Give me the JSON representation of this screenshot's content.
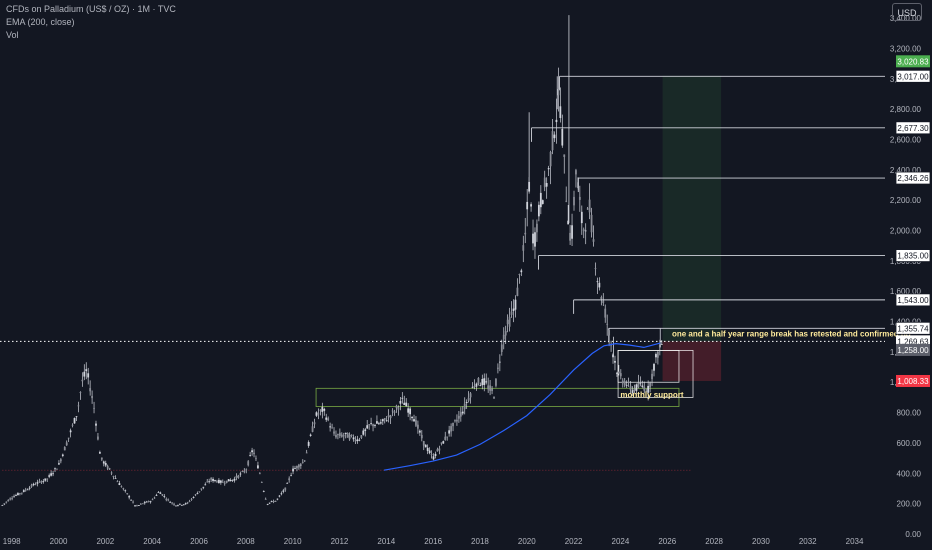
{
  "header": {
    "title": "CFDs on Palladium (US$ / OZ) · 1M · TVC",
    "indicator": "EMA (200, close)",
    "volume": "Vol"
  },
  "currency": "USD",
  "chart_data": {
    "type": "candlestick",
    "title": "CFDs on Palladium (US$ / OZ) · 1M · TVC",
    "xlim": [
      1997.5,
      2035.3
    ],
    "ylim": [
      -40,
      3520
    ],
    "x_ticks": [
      1998,
      2000,
      2002,
      2004,
      2006,
      2008,
      2010,
      2012,
      2014,
      2016,
      2018,
      2020,
      2022,
      2024,
      2026,
      2028,
      2030,
      2032,
      2034
    ],
    "y_ticks": [
      0,
      200,
      400,
      600,
      800,
      1000,
      1200,
      1400,
      1600,
      1800,
      2000,
      2200,
      2400,
      2600,
      2800,
      3000,
      3200,
      3400
    ],
    "y_tick_labels": [
      "0.00",
      "200.00",
      "400.00",
      "600.00",
      "800.00",
      "1,000.00",
      "1,200.00",
      "1,400.00",
      "1,600.00",
      "1,800.00",
      "2,000.00",
      "2,200.00",
      "2,400.00",
      "2,600.00",
      "2,800.00",
      "3,000.00",
      "3,200.00",
      "3,400.00"
    ],
    "grid": false,
    "price_path": [
      [
        1997.6,
        190
      ],
      [
        1998.0,
        240
      ],
      [
        1998.5,
        280
      ],
      [
        1999.0,
        330
      ],
      [
        1999.5,
        360
      ],
      [
        2000.0,
        450
      ],
      [
        2000.4,
        620
      ],
      [
        2000.8,
        800
      ],
      [
        2001.0,
        1000
      ],
      [
        2001.2,
        1080
      ],
      [
        2001.5,
        850
      ],
      [
        2001.8,
        500
      ],
      [
        2002.2,
        420
      ],
      [
        2002.6,
        330
      ],
      [
        2003.0,
        250
      ],
      [
        2003.3,
        180
      ],
      [
        2003.6,
        200
      ],
      [
        2004.0,
        220
      ],
      [
        2004.3,
        280
      ],
      [
        2004.7,
        220
      ],
      [
        2005.0,
        190
      ],
      [
        2005.5,
        200
      ],
      [
        2006.0,
        280
      ],
      [
        2006.5,
        360
      ],
      [
        2007.0,
        340
      ],
      [
        2007.5,
        360
      ],
      [
        2008.0,
        420
      ],
      [
        2008.3,
        560
      ],
      [
        2008.6,
        400
      ],
      [
        2008.9,
        200
      ],
      [
        2009.3,
        220
      ],
      [
        2009.7,
        300
      ],
      [
        2010.0,
        420
      ],
      [
        2010.5,
        480
      ],
      [
        2011.0,
        780
      ],
      [
        2011.3,
        820
      ],
      [
        2011.8,
        650
      ],
      [
        2012.3,
        650
      ],
      [
        2012.8,
        620
      ],
      [
        2013.3,
        720
      ],
      [
        2013.8,
        730
      ],
      [
        2014.3,
        800
      ],
      [
        2014.7,
        880
      ],
      [
        2015.2,
        760
      ],
      [
        2015.6,
        600
      ],
      [
        2016.0,
        500
      ],
      [
        2016.4,
        600
      ],
      [
        2016.8,
        700
      ],
      [
        2017.3,
        820
      ],
      [
        2017.8,
        1000
      ],
      [
        2018.2,
        1000
      ],
      [
        2018.6,
        920
      ],
      [
        2019.0,
        1300
      ],
      [
        2019.5,
        1500
      ],
      [
        2019.9,
        1900
      ],
      [
        2020.1,
        2300
      ],
      [
        2020.3,
        1900
      ],
      [
        2020.6,
        2200
      ],
      [
        2020.9,
        2350
      ],
      [
        2021.2,
        2700
      ],
      [
        2021.4,
        2900
      ],
      [
        2021.7,
        2200
      ],
      [
        2021.9,
        1900
      ],
      [
        2022.1,
        2400
      ],
      [
        2022.4,
        2000
      ],
      [
        2022.7,
        2150
      ],
      [
        2023.0,
        1700
      ],
      [
        2023.3,
        1500
      ],
      [
        2023.6,
        1250
      ],
      [
        2023.9,
        1050
      ],
      [
        2024.2,
        1000
      ],
      [
        2024.5,
        950
      ],
      [
        2024.9,
        980
      ],
      [
        2025.2,
        950
      ],
      [
        2025.5,
        1150
      ],
      [
        2025.8,
        1269
      ]
    ],
    "spikes": [
      [
        2020.1,
        2780
      ],
      [
        2021.3,
        3017
      ],
      [
        2022.2,
        2350
      ],
      [
        2023.7,
        1300
      ],
      [
        2025.7,
        1356
      ],
      [
        2021.8,
        3420
      ]
    ],
    "ema_200": [
      [
        2013.9,
        420
      ],
      [
        2015,
        450
      ],
      [
        2016,
        480
      ],
      [
        2017,
        520
      ],
      [
        2018,
        590
      ],
      [
        2019,
        680
      ],
      [
        2020,
        780
      ],
      [
        2021,
        920
      ],
      [
        2022,
        1080
      ],
      [
        2022.8,
        1190
      ],
      [
        2023.3,
        1240
      ],
      [
        2023.8,
        1255
      ],
      [
        2024.4,
        1245
      ],
      [
        2025,
        1230
      ],
      [
        2025.7,
        1258
      ]
    ],
    "horizontal_levels": [
      {
        "price": 3017,
        "label": "3,017.00",
        "x_start": 2021.4
      },
      {
        "price": 2677.3,
        "label": "2,677.30",
        "x_start": 2020.2
      },
      {
        "price": 2346.26,
        "label": "2,346.26",
        "x_start": 2022.2
      },
      {
        "price": 1835,
        "label": "1,835.00",
        "x_start": 2020.5
      },
      {
        "price": 1543,
        "label": "1,543.00",
        "x_start": 2022.0
      },
      {
        "price": 1355.74,
        "label": "1,355.74",
        "x_start": 2023.5
      }
    ],
    "price_labels": [
      {
        "price": 3020.83,
        "label": "3,020.83",
        "kind": "target"
      },
      {
        "price": 1269.63,
        "label": "1,269.63",
        "kind": "last"
      },
      {
        "price": 1258.0,
        "label": "1,258.00",
        "kind": "ema"
      },
      {
        "price": 1008.33,
        "label": "1,008.33",
        "kind": "stop"
      }
    ],
    "boxes": [
      {
        "name": "monthly-support-zone",
        "x": [
          2011.0,
          2026.5
        ],
        "y": [
          840,
          960
        ],
        "color": "#8bc34a"
      },
      {
        "name": "range-box",
        "x": [
          2023.9,
          2027.1
        ],
        "y": [
          900,
          1210
        ],
        "color": "#ffffff"
      },
      {
        "name": "range-inner-box",
        "x": [
          2023.9,
          2026.5
        ],
        "y": [
          1000,
          1210
        ],
        "color": "#ffffff"
      }
    ],
    "long_position": {
      "x": [
        2025.8,
        2028.3
      ],
      "entry": 1269.63,
      "target": 3020.83,
      "stop": 1008.33
    },
    "base_line": {
      "price": 420,
      "x": [
        1997.6,
        2027.0
      ]
    },
    "annotations": [
      {
        "text": "monthly support",
        "x": 2024.0,
        "y": 900
      },
      {
        "text": "one and a half year range break has retested and confirmed no",
        "x": 2026.2,
        "y": 1300
      }
    ],
    "colors": {
      "background": "#131722",
      "candles": "#d1d4dc",
      "ema": "#2962ff",
      "target": "#4caf50",
      "stop": "#f23645",
      "support": "#8bc34a"
    }
  }
}
